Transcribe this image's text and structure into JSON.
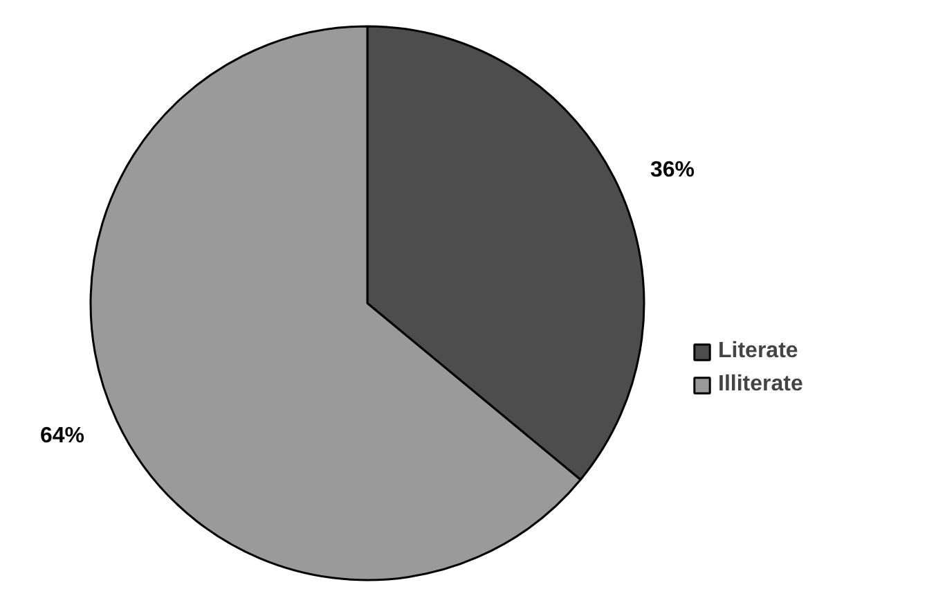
{
  "chart_data": {
    "type": "pie",
    "categories": [
      "Literate",
      "Illiterate"
    ],
    "values": [
      36,
      64
    ],
    "colors": [
      "#4d4d4d",
      "#9a9a9a"
    ],
    "value_labels": [
      "36%",
      "64%"
    ],
    "legend": "right"
  }
}
